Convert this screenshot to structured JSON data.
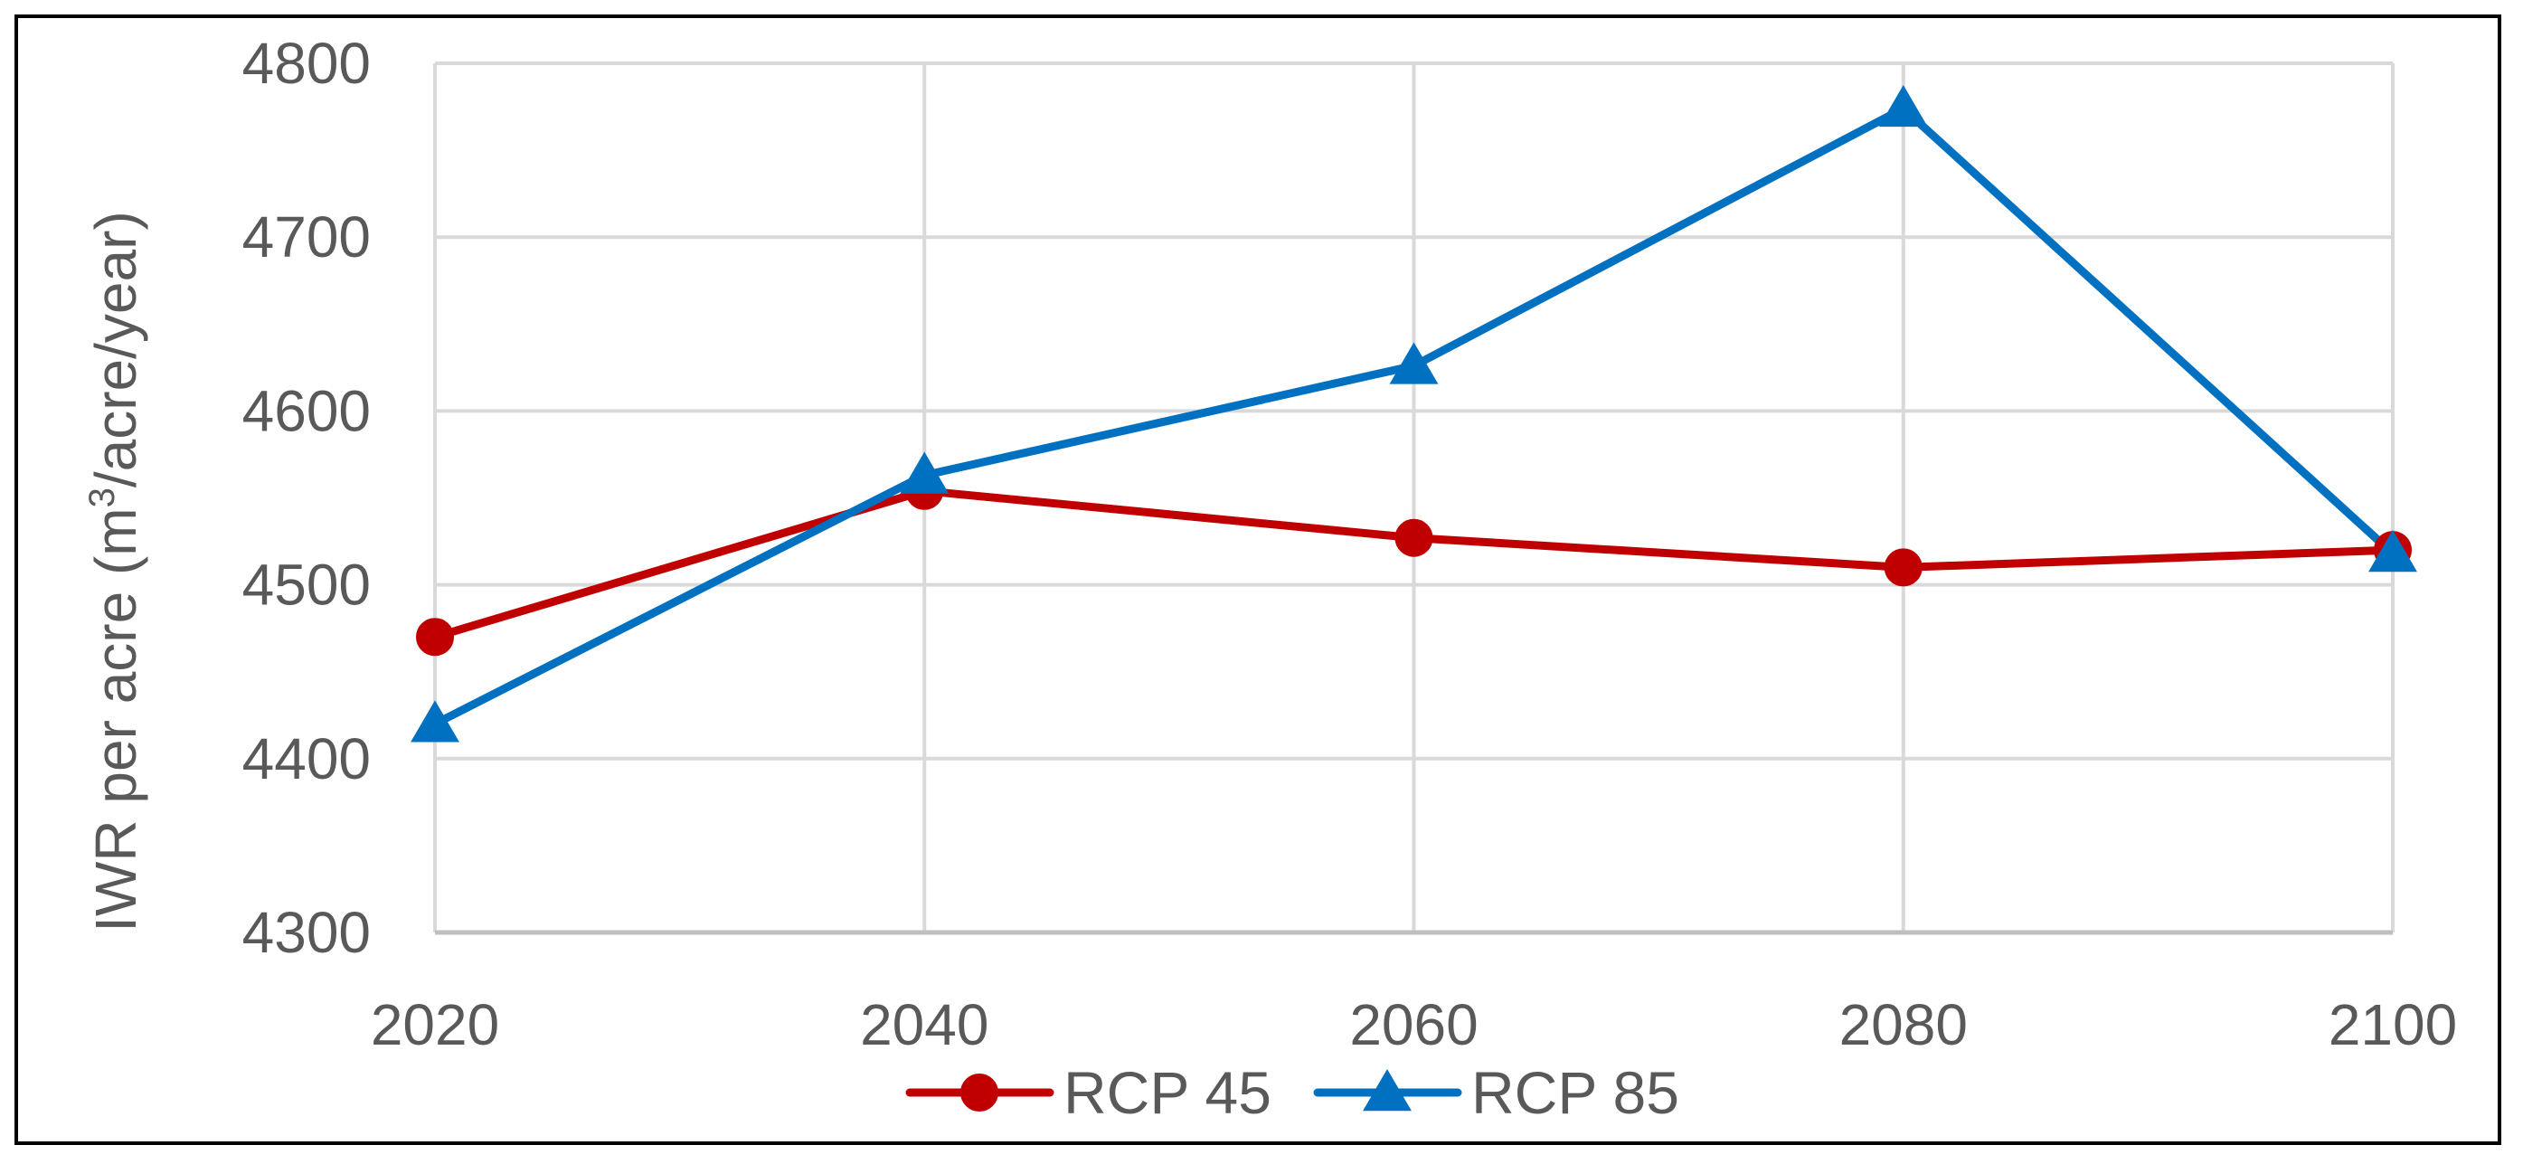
{
  "chart_data": {
    "type": "line",
    "title": "",
    "xlabel": "",
    "ylabel": {
      "prefix": "IWR per acre (m",
      "superscript": "3",
      "suffix": "/acre/year)"
    },
    "x": [
      2020,
      2040,
      2060,
      2080,
      2100
    ],
    "x_tick_labels": [
      "2020",
      "2040",
      "2060",
      "2080",
      "2100"
    ],
    "ylim": [
      4300,
      4800
    ],
    "y_ticks": [
      4300,
      4400,
      4500,
      4600,
      4700,
      4800
    ],
    "y_tick_labels": [
      "4300",
      "4400",
      "4500",
      "4600",
      "4700",
      "4800"
    ],
    "grid": true,
    "legend_position": "bottom",
    "series": [
      {
        "name": "RCP 45",
        "color": "#C00000",
        "marker": "circle",
        "values": [
          4470,
          4554,
          4527,
          4510,
          4520
        ]
      },
      {
        "name": "RCP 85",
        "color": "#0070C0",
        "marker": "triangle",
        "values": [
          4420,
          4563,
          4626,
          4774,
          4518
        ]
      }
    ],
    "colors": {
      "grid": "#D9D9D9",
      "axis": "#BFBFBF",
      "text": "#595959"
    }
  }
}
